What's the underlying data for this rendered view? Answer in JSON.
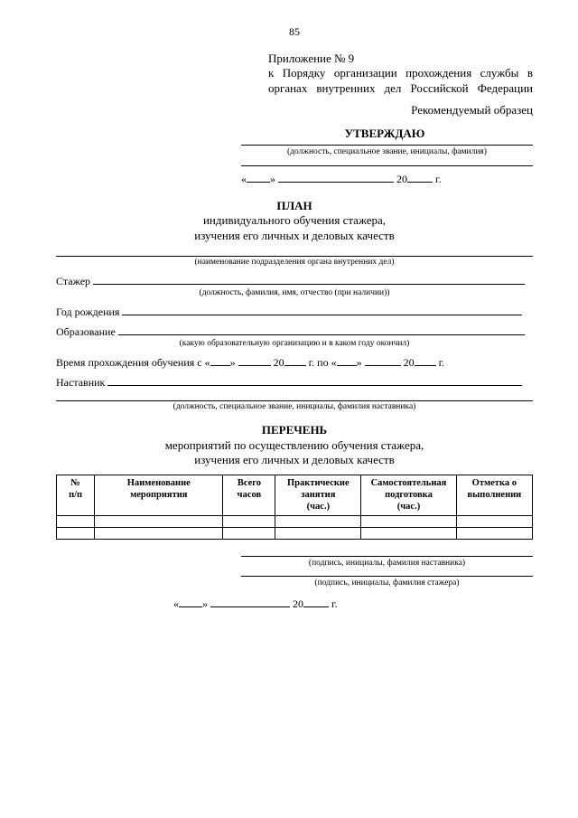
{
  "page_number": "85",
  "appendix": {
    "first": "Приложение № 9",
    "body": "к Порядку организации прохождения службы в органах внутренних дел Российской Федерации"
  },
  "recommended_sample": "Рекомендуемый образец",
  "approve": "УТВЕРЖДАЮ",
  "sig_caption_top": "(должность, специальное звание, инициалы, фамилия)",
  "date_parts": {
    "q1": "«",
    "q2": "»",
    "twenty": "20",
    "g": "г."
  },
  "plan": {
    "t1": "ПЛАН",
    "t2": "индивидуального обучения стажера,",
    "t3": "изучения его личных и деловых качеств"
  },
  "fields": {
    "org_caption": "(наименование подразделения органа внутренних дел)",
    "stazher_label": "Стажер",
    "stazher_caption": "(должность, фамилия, имя, отчество (при наличии))",
    "birth_label": "Год рождения",
    "edu_label": "Образование",
    "edu_caption": "(какую образовательную организацию и в каком году окончил)",
    "period_prefix": "Время прохождения обучения с «",
    "period_mid": "» ",
    "period_to": "г. по «",
    "period_end": "» ",
    "mentor_label": "Наставник",
    "mentor_caption": "(должность, специальное звание, инициалы, фамилия наставника)"
  },
  "list": {
    "t1": "ПЕРЕЧЕНЬ",
    "t2": "мероприятий по осуществлению обучения стажера,",
    "t3": "изучения его личных и деловых качеств"
  },
  "table": {
    "columns": [
      {
        "label": "№\nп/п",
        "width": "8%"
      },
      {
        "label": "Наименование\nмероприятия",
        "width": "27%"
      },
      {
        "label": "Всего\nчасов",
        "width": "11%"
      },
      {
        "label": "Практические\nзанятия\n(час.)",
        "width": "18%"
      },
      {
        "label": "Самостоятельная\nподготовка\n(час.)",
        "width": "20%"
      },
      {
        "label": "Отметка о\nвыполнении",
        "width": "16%"
      }
    ],
    "rows": [
      [
        "",
        "",
        "",
        "",
        "",
        ""
      ],
      [
        "",
        "",
        "",
        "",
        "",
        ""
      ]
    ]
  },
  "bottom": {
    "mentor_sig_caption": "(подпись, инициалы, фамилия наставника)",
    "stazher_sig_caption": "(подпись, инициалы, фамилия стажера)"
  },
  "styling": {
    "background_color": "#ffffff",
    "text_color": "#000000",
    "font_family": "Times New Roman",
    "base_fontsize_pt": 12,
    "caption_fontsize_pt": 9.5,
    "border_color": "#000000"
  }
}
